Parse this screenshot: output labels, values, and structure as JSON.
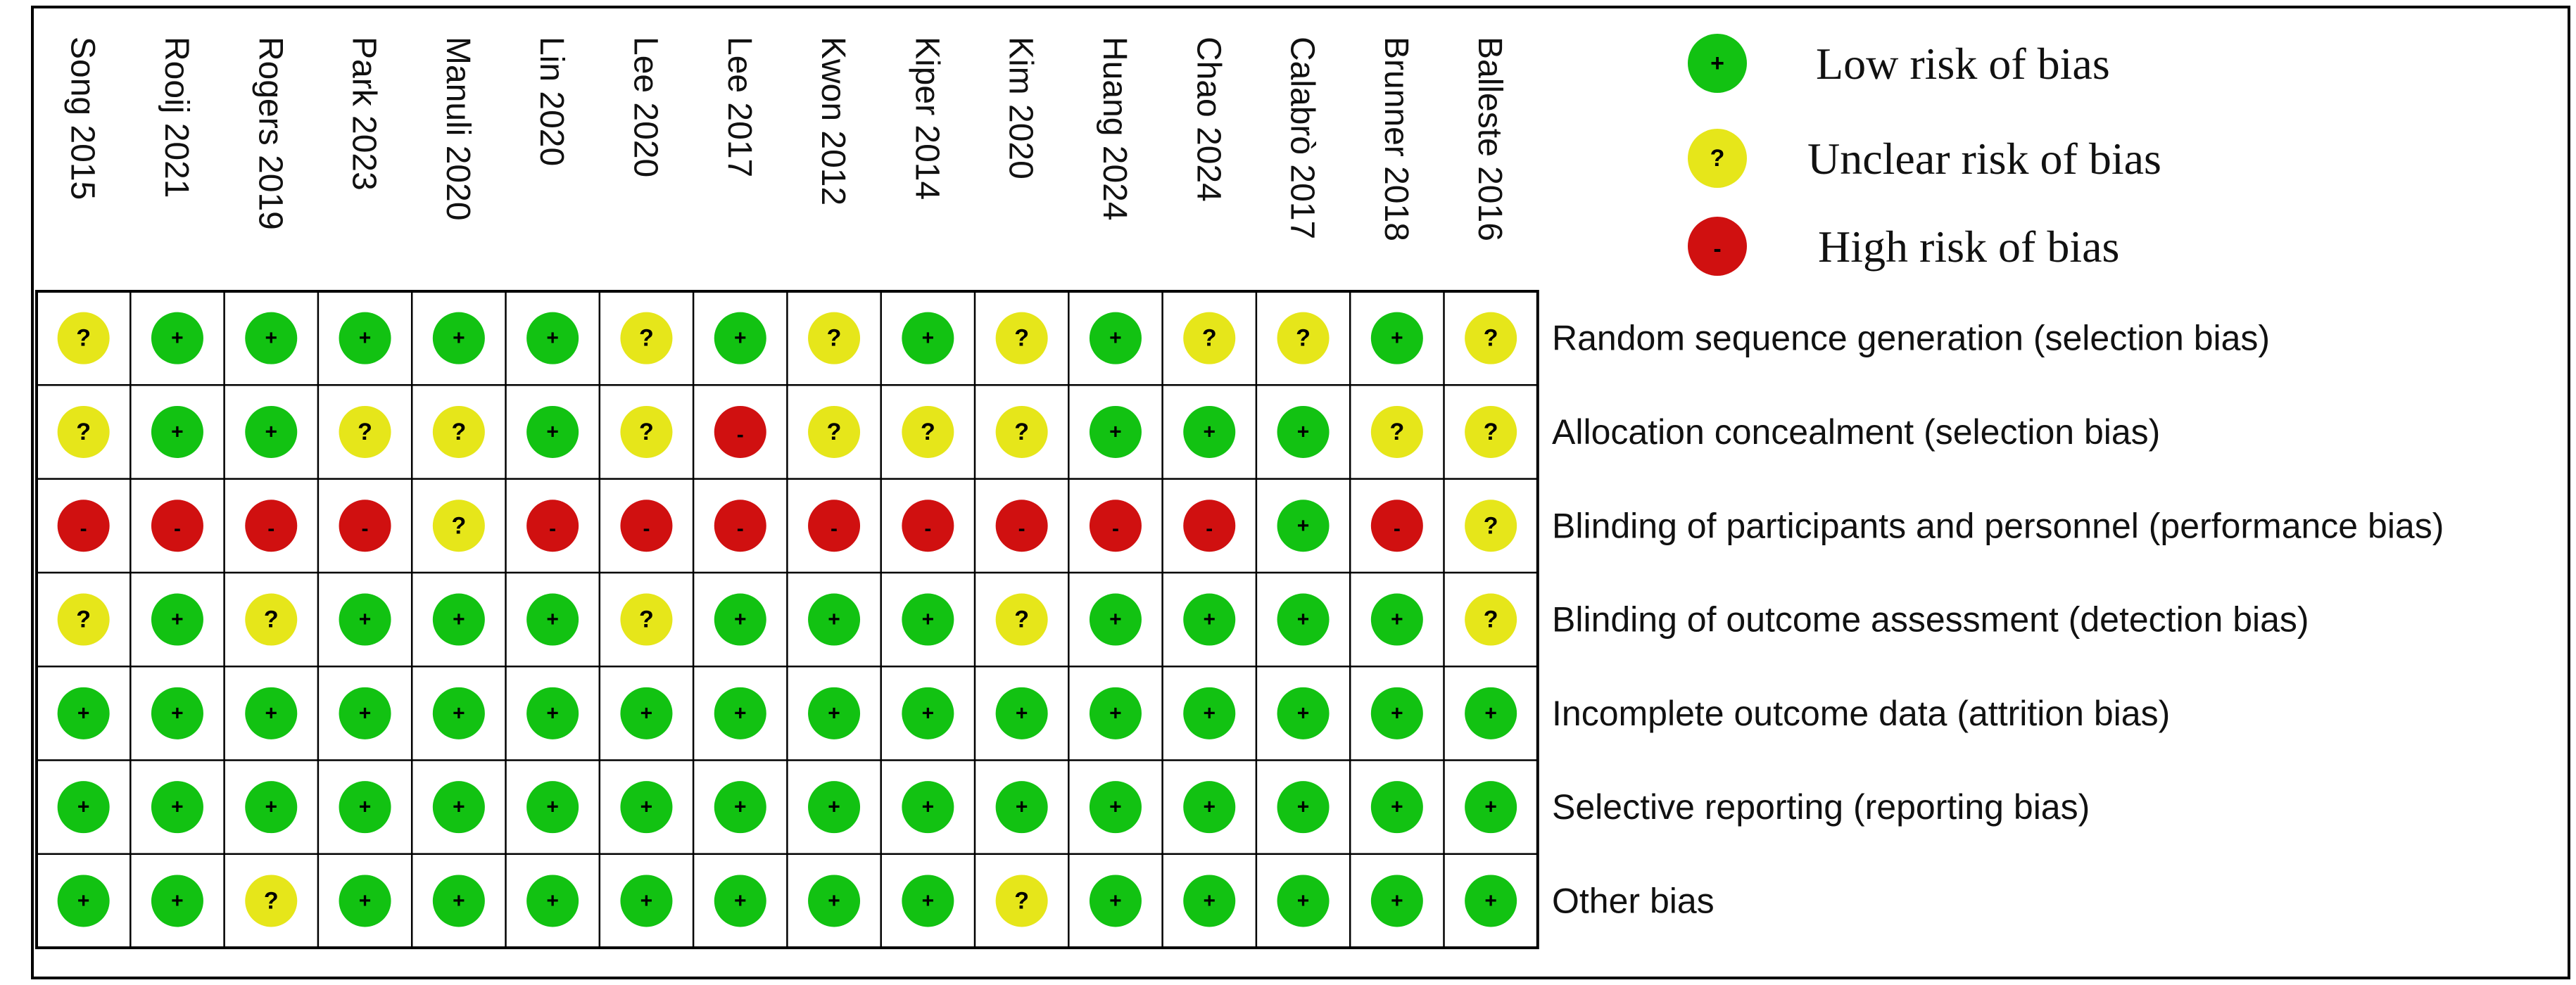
{
  "chart_data": {
    "type": "table",
    "studies": [
      "Song 2015",
      "Rooij 2021",
      "Rogers 2019",
      "Park 2023",
      "Manuli 2020",
      "Lin 2020",
      "Lee 2020",
      "Lee 2017",
      "Kwon 2012",
      "Kiper 2014",
      "Kim 2020",
      "Huang 2024",
      "Chao 2024",
      "Calabrò 2017",
      "Brunner 2018",
      "Balleste 2016"
    ],
    "domains": [
      "Random sequence generation (selection bias)",
      "Allocation concealment (selection bias)",
      "Blinding of participants and personnel (performance bias)",
      "Blinding of outcome assessment (detection bias)",
      "Incomplete outcome data (attrition bias)",
      "Selective reporting (reporting bias)",
      "Other bias"
    ],
    "judgements": [
      [
        "?",
        "+",
        "+",
        "+",
        "+",
        "+",
        "?",
        "+",
        "?",
        "+",
        "?",
        "+",
        "?",
        "?",
        "+",
        "?"
      ],
      [
        "?",
        "+",
        "+",
        "?",
        "?",
        "+",
        "?",
        "-",
        "?",
        "?",
        "?",
        "+",
        "+",
        "+",
        "?",
        "?"
      ],
      [
        "-",
        "-",
        "-",
        "-",
        "?",
        "-",
        "-",
        "-",
        "-",
        "-",
        "-",
        "-",
        "-",
        "+",
        "-",
        "?"
      ],
      [
        "?",
        "+",
        "?",
        "+",
        "+",
        "+",
        "?",
        "+",
        "+",
        "+",
        "?",
        "+",
        "+",
        "+",
        "+",
        "?"
      ],
      [
        "+",
        "+",
        "+",
        "+",
        "+",
        "+",
        "+",
        "+",
        "+",
        "+",
        "+",
        "+",
        "+",
        "+",
        "+",
        "+"
      ],
      [
        "+",
        "+",
        "+",
        "+",
        "+",
        "+",
        "+",
        "+",
        "+",
        "+",
        "+",
        "+",
        "+",
        "+",
        "+",
        "+"
      ],
      [
        "+",
        "+",
        "?",
        "+",
        "+",
        "+",
        "+",
        "+",
        "+",
        "+",
        "?",
        "+",
        "+",
        "+",
        "+",
        "+"
      ]
    ],
    "legend": [
      {
        "symbol": "+",
        "label": "Low risk of bias",
        "color": "#12c212"
      },
      {
        "symbol": "?",
        "label": "Unclear risk of bias",
        "color": "#e6e61a"
      },
      {
        "symbol": "-",
        "label": "High risk of bias",
        "color": "#d01010"
      }
    ]
  }
}
